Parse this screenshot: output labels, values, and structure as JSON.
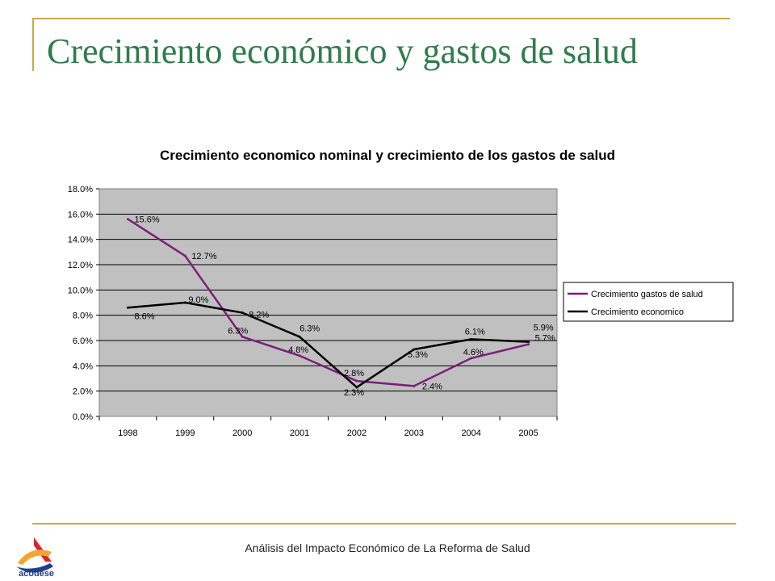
{
  "slide": {
    "title": "Crecimiento económico y gastos de salud",
    "footer": "Análisis del Impacto Económico de La Reforma de Salud",
    "logo_text": "acodese"
  },
  "colors": {
    "accent_rule": "#c8a84b",
    "title_green": "#2e7d4a",
    "plot_bg": "#c0c0c0",
    "health_series": "#7b1f7b",
    "economy_series": "#000000"
  },
  "chart_data": {
    "type": "line",
    "title": "Crecimiento economico nominal y crecimiento de los gastos de salud",
    "categories": [
      "1998",
      "1999",
      "2000",
      "2001",
      "2002",
      "2003",
      "2004",
      "2005"
    ],
    "y_ticks": [
      "0.0%",
      "2.0%",
      "4.0%",
      "6.0%",
      "8.0%",
      "10.0%",
      "12.0%",
      "14.0%",
      "16.0%",
      "18.0%"
    ],
    "ylim": [
      0,
      18
    ],
    "grid": true,
    "legend_position": "right",
    "series": [
      {
        "name": "Crecimiento gastos de salud",
        "color": "#7b1f7b",
        "values": [
          15.6,
          12.7,
          6.3,
          4.8,
          2.8,
          2.4,
          4.6,
          5.7
        ],
        "labels": [
          "15.6%",
          "12.7%",
          "6.3%",
          "4.8%",
          "2.8%",
          "2.4%",
          "4.6%",
          "5.7%"
        ]
      },
      {
        "name": "Crecimiento economico",
        "color": "#000000",
        "values": [
          8.6,
          9.0,
          8.2,
          6.3,
          2.3,
          5.3,
          6.1,
          5.9
        ],
        "labels": [
          "8.6%",
          "9.0%",
          "8.2%",
          "6.3%",
          "2.3%",
          "5.3%",
          "6.1%",
          "5.9%"
        ]
      }
    ]
  }
}
